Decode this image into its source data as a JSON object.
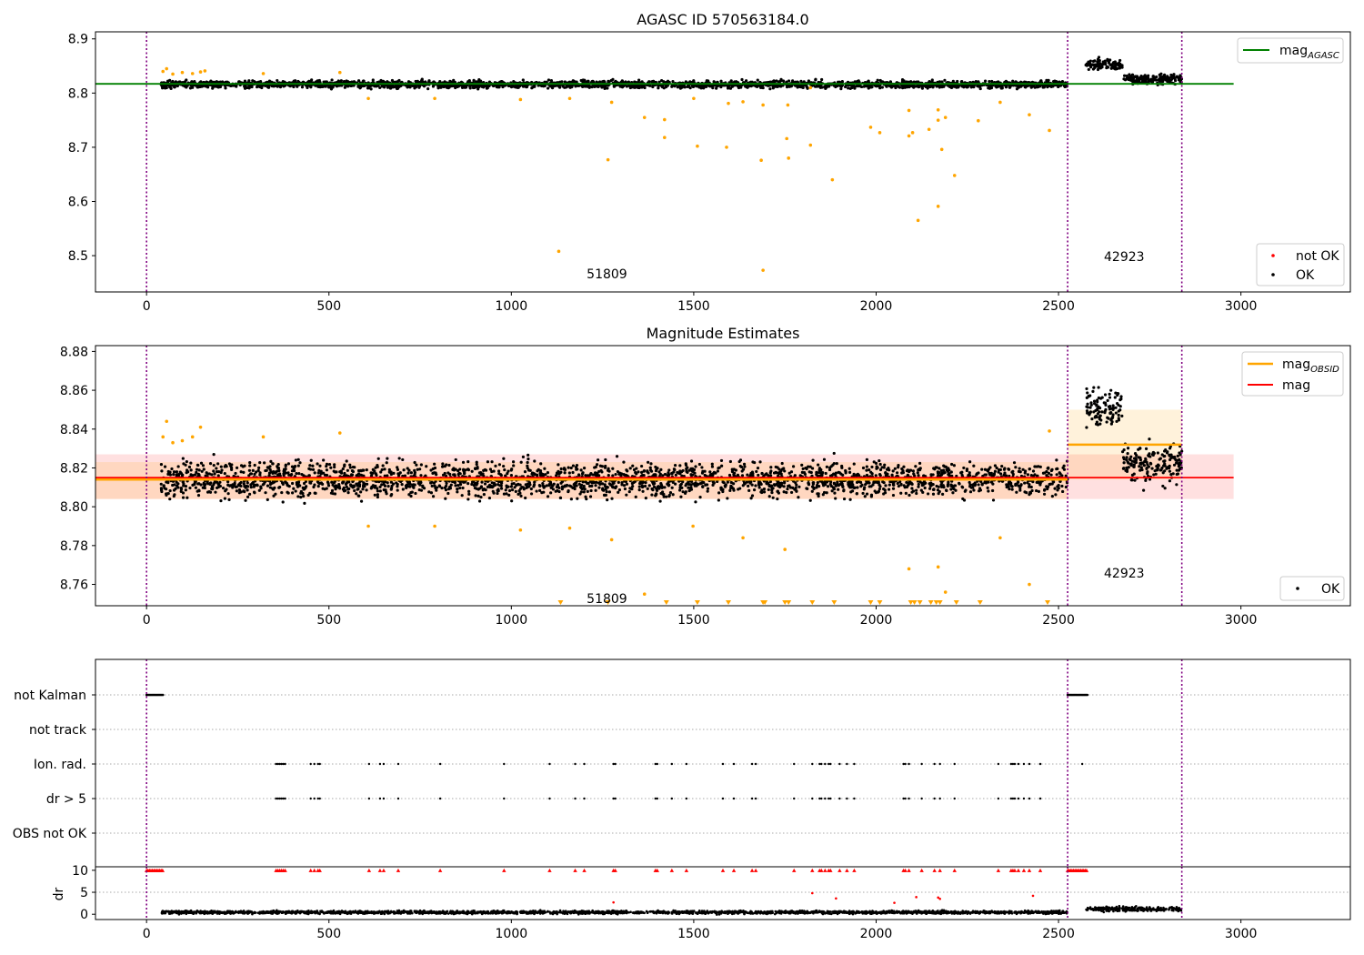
{
  "chart_data": [
    {
      "type": "scatter",
      "title": "AGASC ID 570563184.0",
      "xlim": [
        -140,
        3300
      ],
      "ylim": [
        8.433,
        8.913
      ],
      "xticks": [
        0,
        500,
        1000,
        1500,
        2000,
        2500,
        3000
      ],
      "yticks": [
        8.5,
        8.6,
        8.7,
        8.8,
        8.9
      ],
      "ytick_labels": [
        "8.5",
        "8.6",
        "8.7",
        "8.8",
        "8.9"
      ],
      "obsid_boundaries": [
        0,
        2525,
        2838
      ],
      "obsid_labels": [
        {
          "text": "51809",
          "x": 1262,
          "y": 8.458
        },
        {
          "text": "42923",
          "x": 2680,
          "y": 8.49
        }
      ],
      "hline": {
        "name": "mag_AGASC",
        "y": 8.817,
        "x": [
          -140,
          2980
        ],
        "color": "#008000"
      },
      "ok_segments": [
        {
          "x": [
            40,
            2525
          ],
          "mean": 8.816,
          "noise": 0.0055
        },
        {
          "x": [
            2575,
            2675
          ],
          "mean": 8.852,
          "noise": 0.008
        },
        {
          "x": [
            2675,
            2838
          ],
          "mean": 8.826,
          "noise": 0.007
        }
      ],
      "not_ok_points": {
        "x": [
          45,
          55,
          72,
          98,
          126,
          148,
          160,
          320,
          530,
          608,
          790,
          1025,
          1160,
          1275,
          1365,
          1420,
          1500,
          1595,
          1635,
          1690,
          1758,
          1820,
          2090,
          2170,
          2340,
          2420,
          2475,
          1130,
          1265,
          1420,
          1510,
          1590,
          1685,
          1690,
          1755,
          1760,
          1820,
          1880,
          1985,
          2010,
          2090,
          2100,
          2115,
          2145,
          2170,
          2170,
          2180,
          2190,
          2215,
          2280
        ],
        "y": [
          8.84,
          8.845,
          8.835,
          8.838,
          8.836,
          8.839,
          8.841,
          8.836,
          8.838,
          8.79,
          8.79,
          8.788,
          8.79,
          8.783,
          8.755,
          8.718,
          8.79,
          8.781,
          8.784,
          8.778,
          8.778,
          8.81,
          8.768,
          8.769,
          8.783,
          8.76,
          8.731,
          8.508,
          8.677,
          8.751,
          8.702,
          8.7,
          8.676,
          8.473,
          8.716,
          8.68,
          8.704,
          8.64,
          8.737,
          8.727,
          8.721,
          8.727,
          8.565,
          8.733,
          8.75,
          8.591,
          8.696,
          8.755,
          8.648,
          8.749
        ],
        "color": "#ffa500"
      },
      "legend_line": [
        {
          "label": "mag",
          "sub": "AGASC",
          "color": "#008000"
        }
      ],
      "legend_marker": [
        {
          "label": "not OK",
          "color": "#ff0000"
        },
        {
          "label": "OK",
          "color": "#000000"
        }
      ]
    },
    {
      "type": "scatter",
      "title": "Magnitude Estimates",
      "xlim": [
        -140,
        3300
      ],
      "ylim": [
        8.749,
        8.883
      ],
      "xticks": [
        0,
        500,
        1000,
        1500,
        2000,
        2500,
        3000
      ],
      "yticks": [
        8.76,
        8.78,
        8.8,
        8.82,
        8.84,
        8.86,
        8.88
      ],
      "ytick_labels": [
        "8.76",
        "8.78",
        "8.80",
        "8.82",
        "8.84",
        "8.86",
        "8.88"
      ],
      "obsid_boundaries": [
        0,
        2525,
        2838
      ],
      "obsid_labels": [
        {
          "text": "51809",
          "x": 1262,
          "y": 8.7505
        },
        {
          "text": "42923",
          "x": 2680,
          "y": 8.7635
        }
      ],
      "mag": {
        "name": "mag",
        "y": 8.815,
        "band": [
          8.804,
          8.827
        ],
        "x": [
          -140,
          2980
        ],
        "color": "#ff0000"
      },
      "mag_obsid": [
        {
          "name": "mag_OBSID",
          "x": [
            -140,
            2525
          ],
          "y": 8.814,
          "band": [
            8.804,
            8.823
          ]
        },
        {
          "name": "mag_OBSID",
          "x": [
            2525,
            2838
          ],
          "y": 8.832,
          "band": [
            8.814,
            8.85
          ]
        }
      ],
      "ok_segments": [
        {
          "x": [
            40,
            2525
          ],
          "mean": 8.814,
          "noise": 0.0075
        },
        {
          "x": [
            2575,
            2675
          ],
          "mean": 8.852,
          "noise": 0.008
        },
        {
          "x": [
            2675,
            2838
          ],
          "mean": 8.822,
          "noise": 0.008
        }
      ],
      "not_ok_points": {
        "x": [
          45,
          55,
          72,
          98,
          126,
          148,
          320,
          530,
          608,
          790,
          1025,
          1160,
          1275,
          1365,
          1498,
          1635,
          1750,
          2090,
          2170,
          2190,
          2340,
          2420,
          2475
        ],
        "y": [
          8.836,
          8.844,
          8.833,
          8.834,
          8.836,
          8.841,
          8.836,
          8.838,
          8.79,
          8.79,
          8.788,
          8.789,
          8.783,
          8.755,
          8.79,
          8.784,
          8.778,
          8.768,
          8.769,
          8.756,
          8.784,
          8.76,
          8.839
        ],
        "color": "#ffa500"
      },
      "below_range_markers": {
        "x": [
          1135,
          1265,
          1425,
          1510,
          1595,
          1690,
          1695,
          1750,
          1760,
          1825,
          1885,
          1985,
          2010,
          2095,
          2105,
          2120,
          2150,
          2165,
          2175,
          2220,
          2285,
          2470
        ]
      },
      "legend_line": [
        {
          "label": "mag",
          "sub": "OBSID",
          "color": "#ffa500"
        },
        {
          "label": "mag",
          "sub": "",
          "color": "#ff0000"
        }
      ],
      "legend_marker": [
        {
          "label": "OK",
          "color": "#000000"
        }
      ]
    },
    {
      "type": "scatter",
      "title": "",
      "xlim": [
        -140,
        3300
      ],
      "ylabels": [
        "not Kalman",
        "not track",
        "Ion. rad.",
        "dr > 5",
        "OBS not OK"
      ],
      "obsid_boundaries": [
        0,
        2525,
        2838
      ],
      "not_kalman": {
        "x": [
          [
            0,
            45
          ],
          [
            2525,
            2580
          ]
        ]
      },
      "flag_x": [
        355,
        360,
        365,
        370,
        375,
        380,
        450,
        460,
        470,
        475,
        610,
        640,
        650,
        690,
        805,
        980,
        1105,
        1175,
        1200,
        1280,
        1285,
        1395,
        1400,
        1440,
        1480,
        1580,
        1610,
        1660,
        1670,
        1775,
        1825,
        1845,
        1850,
        1860,
        1870,
        1875,
        1900,
        1920,
        1940,
        2075,
        2080,
        2090,
        2125,
        2160,
        2175,
        2215,
        2335,
        2370,
        2375,
        2380,
        2390,
        2405,
        2420,
        2450
      ],
      "ion_rad_extra_x": [
        2565
      ]
    },
    {
      "type": "scatter",
      "title": "",
      "ylabel": "dr",
      "xlim": [
        -140,
        3300
      ],
      "ylim": [
        -1.2,
        10.8
      ],
      "xticks": [
        0,
        500,
        1000,
        1500,
        2000,
        2500,
        3000
      ],
      "yticks": [
        0,
        5,
        10
      ],
      "ytick_labels": [
        "0",
        "5",
        "10"
      ],
      "obsid_boundaries": [
        0,
        2525,
        2838
      ],
      "capped_markers": {
        "value": 10,
        "x_ranges": [
          [
            0,
            45
          ],
          [
            2525,
            2580
          ]
        ]
      },
      "ok_segments": [
        {
          "x": [
            40,
            2525
          ],
          "mean": 0.45,
          "noise": 0.3
        },
        {
          "x": [
            2575,
            2838
          ],
          "mean": 1.2,
          "noise": 0.45
        }
      ],
      "outliers": {
        "x": [
          1280,
          1825,
          1890,
          2050,
          2110,
          2170,
          2175,
          2430
        ],
        "y": [
          2.7,
          4.8,
          3.6,
          2.6,
          3.9,
          3.8,
          3.5,
          4.2
        ]
      }
    }
  ]
}
